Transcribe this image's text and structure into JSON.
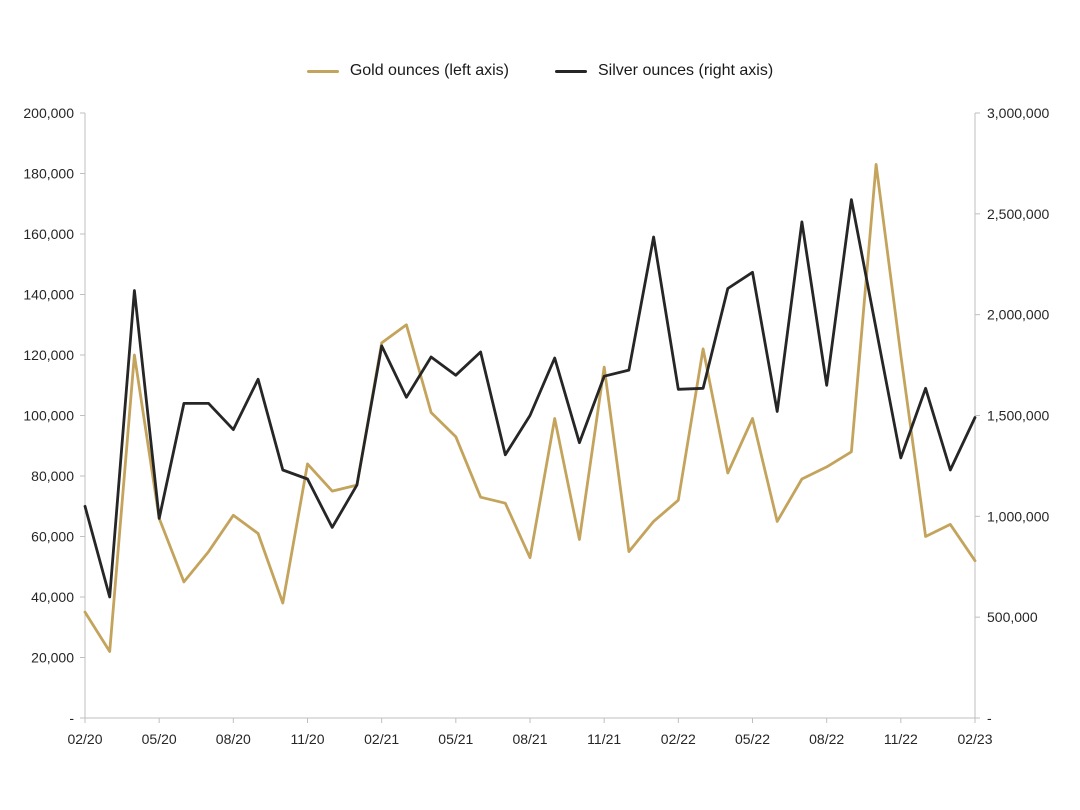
{
  "page": {
    "background": "#ffffff"
  },
  "legend": {
    "items": [
      {
        "label": "Gold ounces (left axis)",
        "color": "#C4A45C"
      },
      {
        "label": "Silver ounces (right axis)",
        "color": "#262626"
      }
    ]
  },
  "chart_data": {
    "type": "line",
    "title": "",
    "xlabel": "",
    "ylabel_left": "",
    "ylabel_right": "",
    "grid": false,
    "legend_position": "top",
    "x": [
      "02/20",
      "03/20",
      "04/20",
      "05/20",
      "06/20",
      "07/20",
      "08/20",
      "09/20",
      "10/20",
      "11/20",
      "12/20",
      "01/21",
      "02/21",
      "03/21",
      "04/21",
      "05/21",
      "06/21",
      "07/21",
      "08/21",
      "09/21",
      "10/21",
      "11/21",
      "12/21",
      "01/22",
      "02/22",
      "03/22",
      "04/22",
      "05/22",
      "06/22",
      "07/22",
      "08/22",
      "09/22",
      "10/22",
      "11/22",
      "12/22",
      "01/23",
      "02/23"
    ],
    "x_tick_labels": [
      "02/20",
      "05/20",
      "08/20",
      "11/20",
      "02/21",
      "05/21",
      "08/21",
      "11/21",
      "02/22",
      "05/22",
      "08/22",
      "11/22",
      "02/23"
    ],
    "x_tick_interval": 3,
    "left_axis": {
      "min": 0,
      "max": 200000,
      "step": 20000,
      "tick_labels": [
        "-",
        "20,000",
        "40,000",
        "60,000",
        "80,000",
        "100,000",
        "120,000",
        "140,000",
        "160,000",
        "180,000",
        "200,000"
      ]
    },
    "right_axis": {
      "min": 0,
      "max": 3000000,
      "step": 500000,
      "tick_labels": [
        "-",
        "500,000",
        "1,000,000",
        "1,500,000",
        "2,000,000",
        "2,500,000",
        "3,000,000"
      ]
    },
    "series": [
      {
        "name": "Gold ounces (left axis)",
        "axis": "left",
        "color": "#C4A45C",
        "values": [
          35000,
          22000,
          120000,
          66000,
          45000,
          55000,
          67000,
          61000,
          38000,
          84000,
          75000,
          77000,
          124000,
          130000,
          101000,
          93000,
          73000,
          71000,
          53000,
          99000,
          59000,
          116000,
          55000,
          65000,
          72000,
          122000,
          81000,
          99000,
          65000,
          79000,
          83000,
          88000,
          183000,
          120000,
          60000,
          64000,
          52000
        ]
      },
      {
        "name": "Silver ounces (right axis)",
        "axis": "right",
        "color": "#262626",
        "values": [
          1050000,
          600000,
          2120000,
          990000,
          1560000,
          1560000,
          1430000,
          1680000,
          1230000,
          1185000,
          945000,
          1155000,
          1845000,
          1590000,
          1790000,
          1700000,
          1815000,
          1305000,
          1500000,
          1785000,
          1365000,
          1695000,
          1725000,
          2385000,
          1630000,
          1635000,
          2130000,
          2210000,
          1520000,
          2460000,
          1650000,
          2570000,
          1930000,
          1290000,
          1635000,
          1230000,
          1490000
        ]
      }
    ]
  }
}
